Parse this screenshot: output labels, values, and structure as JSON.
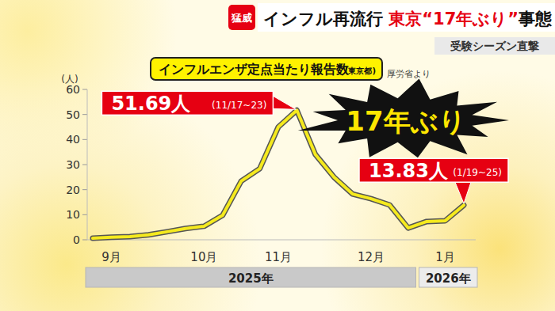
{
  "header": {
    "badge": "猛威",
    "headline": [
      {
        "text": "インフル再流行 ",
        "color": "#111111"
      },
      {
        "text": "東京“17年ぶり”",
        "color": "#e60012"
      },
      {
        "text": "事態",
        "color": "#111111"
      }
    ],
    "subheadline": "受験シーズン直撃"
  },
  "chart_data": {
    "type": "line",
    "title": "インフルエンザ定点当たり報告数",
    "title_note": "(東京都)",
    "source": "厚労省より",
    "y_label": "(人)",
    "categories": [
      null,
      "9月",
      null,
      null,
      null,
      null,
      "10月",
      null,
      null,
      null,
      "11月",
      null,
      null,
      null,
      null,
      "12月",
      null,
      null,
      null,
      "1月",
      null
    ],
    "values": [
      0.6,
      1,
      1.3,
      2,
      3.2,
      4.5,
      5.4,
      9.8,
      23.4,
      28.4,
      45,
      51.69,
      34,
      25,
      18.3,
      16.4,
      13.9,
      4.7,
      7.3,
      7.6,
      13.83
    ],
    "color": "#f5ea1e",
    "ylim": [
      0,
      60
    ],
    "yticks": [
      0,
      10,
      20,
      30,
      40,
      50,
      60
    ],
    "grid": false,
    "x_groups": [
      {
        "label": "2025年",
        "start": 0,
        "end": 17.5
      },
      {
        "label": "2026年",
        "start": 17.5,
        "end": 20
      }
    ],
    "annotations": [
      {
        "value": 51.69,
        "label": "51.69人",
        "period": "(11/17~23)"
      },
      {
        "value": 13.83,
        "label": "13.83人",
        "period": "(1/19~25)"
      }
    ],
    "callout": "17年ぶり"
  }
}
